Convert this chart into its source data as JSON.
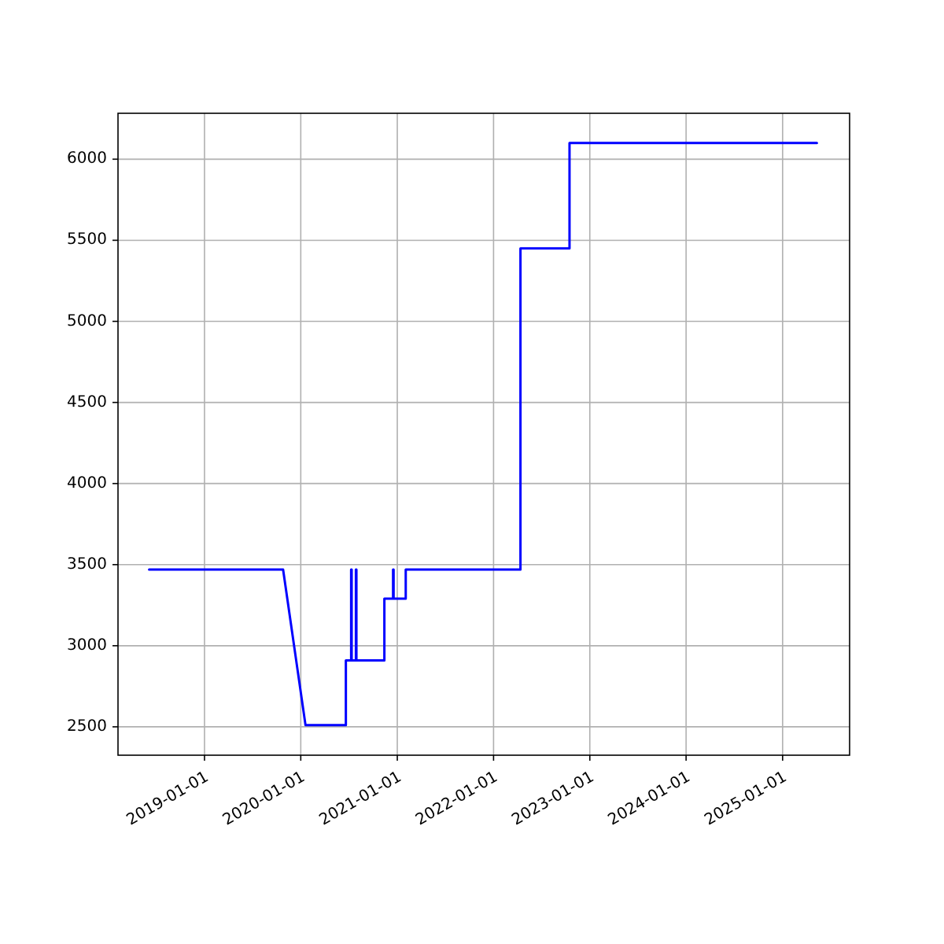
{
  "chart_data": {
    "type": "line",
    "x": [
      "2018-06-05",
      "2019-10-26",
      "2020-01-19",
      "2020-06-20",
      "2020-06-20",
      "2020-07-10",
      "2020-07-10",
      "2020-07-12",
      "2020-07-12",
      "2020-07-28",
      "2020-07-28",
      "2020-07-30",
      "2020-07-30",
      "2020-11-13",
      "2020-11-13",
      "2020-12-16",
      "2020-12-16",
      "2020-12-18",
      "2020-12-18",
      "2021-02-02",
      "2021-02-02",
      "2022-04-13",
      "2022-04-13",
      "2022-10-16",
      "2022-10-16",
      "2025-05-11"
    ],
    "series": [
      {
        "color": "#0000ff",
        "values": [
          3470,
          3470,
          2510,
          2510,
          2910,
          2910,
          3470,
          3470,
          2910,
          2910,
          3470,
          3470,
          2910,
          2910,
          3290,
          3290,
          3470,
          3470,
          3290,
          3290,
          3470,
          3470,
          5450,
          5450,
          6100,
          6100
        ]
      }
    ],
    "xlim": [
      "2018-02-07",
      "2025-09-12"
    ],
    "ylim": [
      2325,
      6283
    ],
    "xticks": [
      {
        "value": "2019-01-01",
        "label": "2019-01-01"
      },
      {
        "value": "2020-01-01",
        "label": "2020-01-01"
      },
      {
        "value": "2021-01-01",
        "label": "2021-01-01"
      },
      {
        "value": "2022-01-01",
        "label": "2022-01-01"
      },
      {
        "value": "2023-01-01",
        "label": "2023-01-01"
      },
      {
        "value": "2024-01-01",
        "label": "2024-01-01"
      },
      {
        "value": "2025-01-01",
        "label": "2025-01-01"
      }
    ],
    "yticks": [
      2500,
      3000,
      3500,
      4000,
      4500,
      5000,
      5500,
      6000
    ],
    "grid": true
  }
}
